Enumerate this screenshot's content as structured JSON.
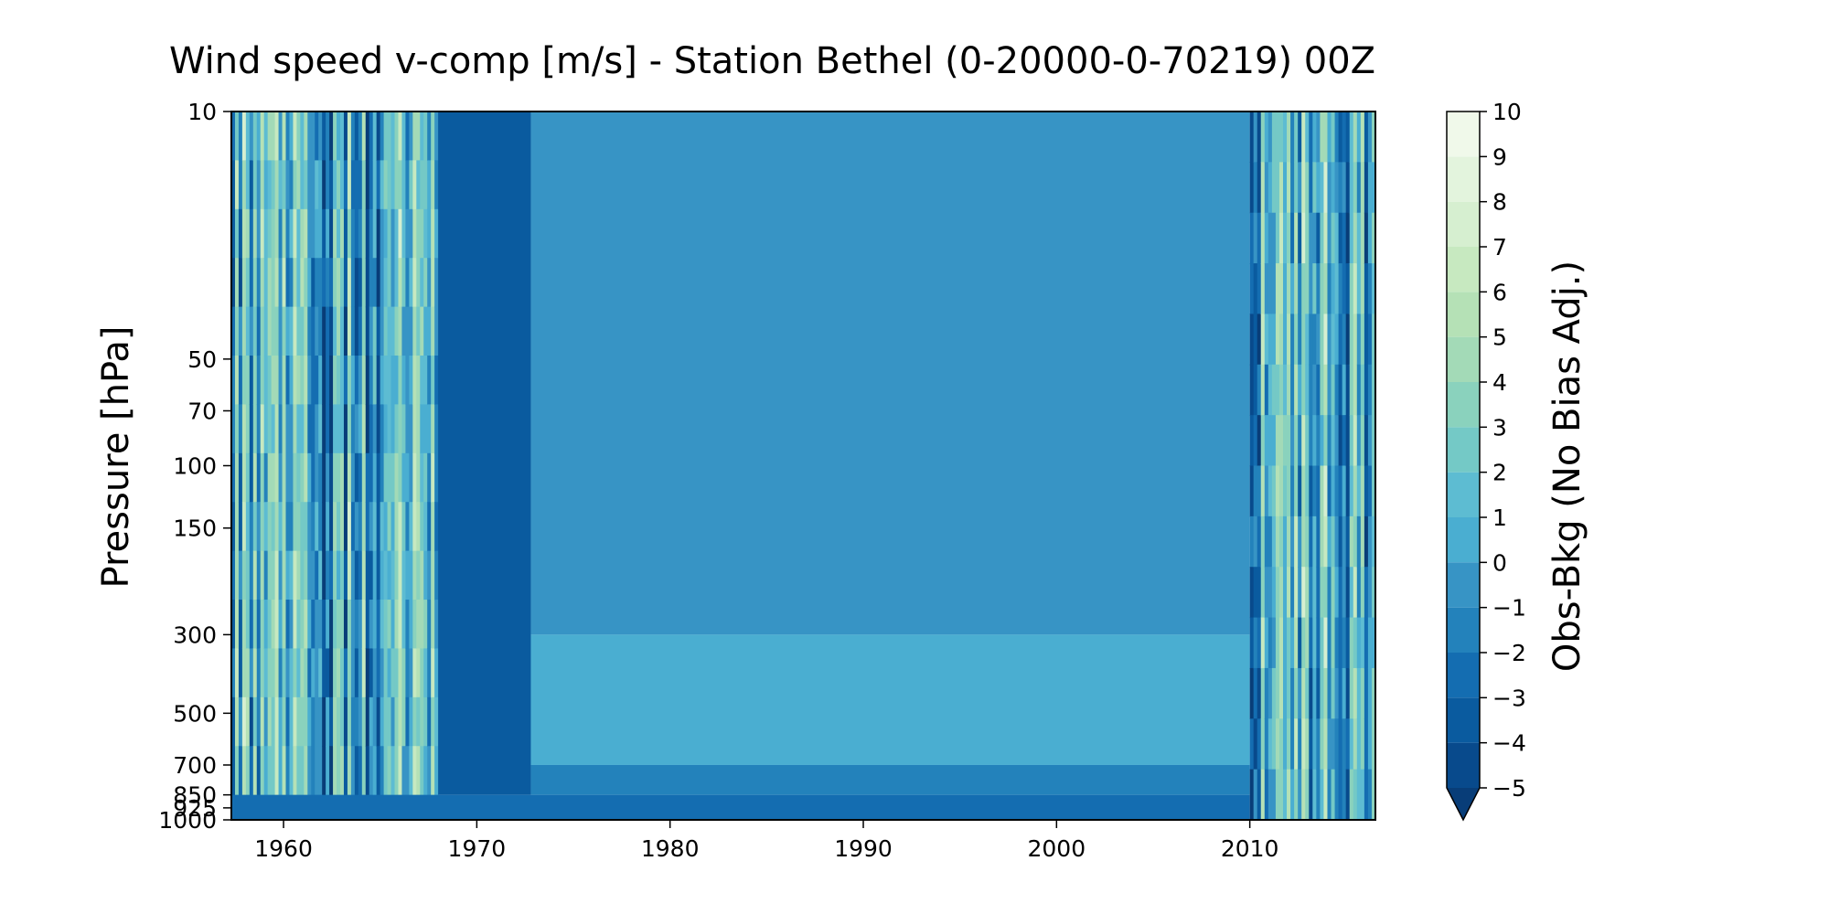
{
  "chart_data": {
    "type": "heatmap",
    "title": "Wind speed v-comp [m/s] - Station Bethel (0-20000-0-70219) 00Z",
    "ylabel": "Pressure [hPa]",
    "xlabel": "",
    "x_range": [
      1957.3,
      2016.5
    ],
    "x_ticks": [
      1960,
      1970,
      1980,
      1990,
      2000,
      2010
    ],
    "y_scale": "log",
    "y_inverted": true,
    "y_range": [
      10,
      1000
    ],
    "y_ticks": [
      10,
      50,
      70,
      100,
      150,
      300,
      500,
      700,
      850,
      925,
      1000
    ],
    "colorbar": {
      "label": "Obs-Bkg (No Bias Adj.)",
      "colormap": "GnBu",
      "min": -5,
      "max": 10,
      "ticks": [
        10,
        9,
        8,
        7,
        6,
        5,
        4,
        3,
        2,
        1,
        0,
        -1,
        -2,
        -3,
        -4,
        -5
      ],
      "extend": "min",
      "levels": [
        {
          "from": -5,
          "to": -4,
          "color": "#084a8c"
        },
        {
          "from": -4,
          "to": -3,
          "color": "#0a5b9f"
        },
        {
          "from": -3,
          "to": -2,
          "color": "#146db1"
        },
        {
          "from": -2,
          "to": -1,
          "color": "#2382bb"
        },
        {
          "from": -1,
          "to": 0,
          "color": "#3794c5"
        },
        {
          "from": 0,
          "to": 1,
          "color": "#4aaed1"
        },
        {
          "from": 1,
          "to": 2,
          "color": "#5dbcd2"
        },
        {
          "from": 2,
          "to": 3,
          "color": "#74c9c6"
        },
        {
          "from": 3,
          "to": 4,
          "color": "#8ad2bd"
        },
        {
          "from": 4,
          "to": 5,
          "color": "#a3dab7"
        },
        {
          "from": 5,
          "to": 6,
          "color": "#b5e1b6"
        },
        {
          "from": 6,
          "to": 7,
          "color": "#c7e9c0"
        },
        {
          "from": 7,
          "to": 8,
          "color": "#d6efd0"
        },
        {
          "from": 8,
          "to": 9,
          "color": "#e3f4dd"
        },
        {
          "from": 9,
          "to": 10,
          "color": "#f0f9ea"
        }
      ],
      "under_color": "#083d78"
    },
    "regions": [
      {
        "name": "noisy-1957-1968",
        "x": [
          1957.3,
          1968.0
        ],
        "p": [
          10,
          850
        ],
        "character": "high-variance vertical streaks",
        "value_range": [
          -5,
          10
        ]
      },
      {
        "name": "transition-1968-1973",
        "x": [
          1968.0,
          1972.8
        ],
        "p": [
          10,
          850
        ],
        "dominant_value": -4
      },
      {
        "name": "smooth-upper-1973-2010",
        "x": [
          1972.8,
          2010.0
        ],
        "p": [
          10,
          300
        ],
        "dominant_value": -0.5
      },
      {
        "name": "smooth-mid-1973-2010",
        "x": [
          1972.8,
          2010.0
        ],
        "p": [
          300,
          700
        ],
        "dominant_value": 0.5
      },
      {
        "name": "smooth-low-1973-2010",
        "x": [
          1972.8,
          2010.0
        ],
        "p": [
          700,
          850
        ],
        "dominant_value": -1.5
      },
      {
        "name": "surface-layer-1957-2010",
        "x": [
          1957.3,
          2010.0
        ],
        "p": [
          850,
          1000
        ],
        "dominant_value": -2.5
      },
      {
        "name": "noisy-2010-2016",
        "x": [
          2010.0,
          2016.5
        ],
        "p": [
          10,
          1000
        ],
        "character": "high-variance vertical streaks",
        "value_range": [
          -5,
          10
        ]
      }
    ]
  }
}
